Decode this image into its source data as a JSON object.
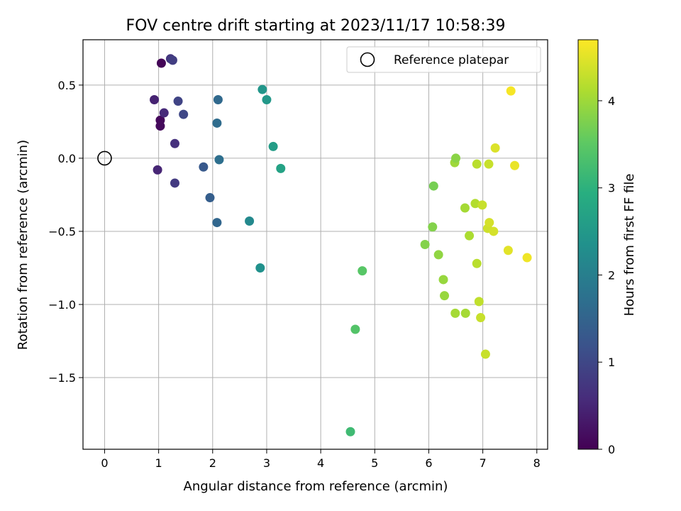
{
  "chart_data": {
    "type": "scatter",
    "title": "FOV centre drift starting at 2023/11/17 10:58:39",
    "xlabel": "Angular distance from reference (arcmin)",
    "ylabel": "Rotation from reference (arcmin)",
    "xlim": [
      -0.4,
      8.2
    ],
    "ylim": [
      -1.99,
      0.81
    ],
    "xticks": [
      0,
      1,
      2,
      3,
      4,
      5,
      6,
      7,
      8
    ],
    "xtick_labels": [
      "0",
      "1",
      "2",
      "3",
      "4",
      "5",
      "6",
      "7",
      "8"
    ],
    "yticks": [
      0.5,
      0.0,
      -0.5,
      -1.0,
      -1.5
    ],
    "ytick_labels": [
      "0.5",
      "0.0",
      "−0.5",
      "−1.0",
      "−1.5"
    ],
    "grid": true,
    "legend": {
      "location": "upper right",
      "entries": [
        "Reference platepar"
      ]
    },
    "reference_point": {
      "x": 0.0,
      "y": 0.0,
      "label": "Reference platepar"
    },
    "colorbar": {
      "label": "Hours from first FF file",
      "colormap": "viridis",
      "range": [
        0,
        4.7
      ],
      "ticks": [
        0,
        1,
        2,
        3,
        4
      ],
      "tick_labels": [
        "0",
        "1",
        "2",
        "3",
        "4"
      ]
    },
    "points": [
      {
        "x": 1.05,
        "y": 0.65,
        "hours": 0.05
      },
      {
        "x": 1.03,
        "y": 0.26,
        "hours": 0.1
      },
      {
        "x": 1.03,
        "y": 0.22,
        "hours": 0.12
      },
      {
        "x": 0.92,
        "y": 0.4,
        "hours": 0.45
      },
      {
        "x": 1.1,
        "y": 0.31,
        "hours": 0.55
      },
      {
        "x": 0.98,
        "y": -0.08,
        "hours": 0.5
      },
      {
        "x": 1.3,
        "y": 0.1,
        "hours": 0.65
      },
      {
        "x": 1.22,
        "y": 0.68,
        "hours": 0.75
      },
      {
        "x": 1.26,
        "y": 0.67,
        "hours": 0.85
      },
      {
        "x": 1.3,
        "y": -0.17,
        "hours": 0.8
      },
      {
        "x": 1.36,
        "y": 0.39,
        "hours": 0.95
      },
      {
        "x": 1.46,
        "y": 0.3,
        "hours": 1.0
      },
      {
        "x": 1.83,
        "y": -0.06,
        "hours": 1.3
      },
      {
        "x": 1.95,
        "y": -0.27,
        "hours": 1.4
      },
      {
        "x": 2.08,
        "y": -0.44,
        "hours": 1.55
      },
      {
        "x": 2.1,
        "y": 0.4,
        "hours": 1.6
      },
      {
        "x": 2.08,
        "y": 0.24,
        "hours": 1.65
      },
      {
        "x": 2.12,
        "y": -0.01,
        "hours": 1.7
      },
      {
        "x": 2.68,
        "y": -0.43,
        "hours": 2.2
      },
      {
        "x": 2.88,
        "y": -0.75,
        "hours": 2.35
      },
      {
        "x": 2.92,
        "y": 0.47,
        "hours": 2.45
      },
      {
        "x": 3.0,
        "y": 0.4,
        "hours": 2.5
      },
      {
        "x": 3.12,
        "y": 0.08,
        "hours": 2.6
      },
      {
        "x": 3.26,
        "y": -0.07,
        "hours": 2.7
      },
      {
        "x": 4.55,
        "y": -1.87,
        "hours": 3.2
      },
      {
        "x": 4.64,
        "y": -1.17,
        "hours": 3.4
      },
      {
        "x": 4.77,
        "y": -0.77,
        "hours": 3.45
      },
      {
        "x": 5.93,
        "y": -0.59,
        "hours": 3.8
      },
      {
        "x": 6.07,
        "y": -0.47,
        "hours": 3.8
      },
      {
        "x": 6.09,
        "y": -0.19,
        "hours": 3.7
      },
      {
        "x": 6.18,
        "y": -0.66,
        "hours": 3.9
      },
      {
        "x": 6.27,
        "y": -0.83,
        "hours": 3.95
      },
      {
        "x": 6.29,
        "y": -0.94,
        "hours": 3.95
      },
      {
        "x": 6.48,
        "y": -0.03,
        "hours": 4.0
      },
      {
        "x": 6.5,
        "y": 0.0,
        "hours": 3.85
      },
      {
        "x": 6.49,
        "y": -1.06,
        "hours": 4.05
      },
      {
        "x": 6.67,
        "y": -0.34,
        "hours": 4.05
      },
      {
        "x": 6.68,
        "y": -1.06,
        "hours": 4.05
      },
      {
        "x": 6.75,
        "y": -0.53,
        "hours": 4.1
      },
      {
        "x": 6.86,
        "y": -0.31,
        "hours": 4.15
      },
      {
        "x": 6.89,
        "y": -0.04,
        "hours": 4.2
      },
      {
        "x": 6.89,
        "y": -0.72,
        "hours": 4.2
      },
      {
        "x": 6.93,
        "y": -0.98,
        "hours": 4.25
      },
      {
        "x": 6.96,
        "y": -1.09,
        "hours": 4.3
      },
      {
        "x": 6.99,
        "y": -0.32,
        "hours": 4.3
      },
      {
        "x": 7.05,
        "y": -1.34,
        "hours": 4.3
      },
      {
        "x": 7.09,
        "y": -0.48,
        "hours": 4.35
      },
      {
        "x": 7.11,
        "y": -0.04,
        "hours": 4.3
      },
      {
        "x": 7.12,
        "y": -0.44,
        "hours": 4.4
      },
      {
        "x": 7.2,
        "y": -0.5,
        "hours": 4.4
      },
      {
        "x": 7.23,
        "y": 0.07,
        "hours": 4.45
      },
      {
        "x": 7.47,
        "y": -0.63,
        "hours": 4.5
      },
      {
        "x": 7.52,
        "y": 0.46,
        "hours": 4.65
      },
      {
        "x": 7.59,
        "y": -0.05,
        "hours": 4.55
      },
      {
        "x": 7.82,
        "y": -0.68,
        "hours": 4.6
      }
    ]
  }
}
